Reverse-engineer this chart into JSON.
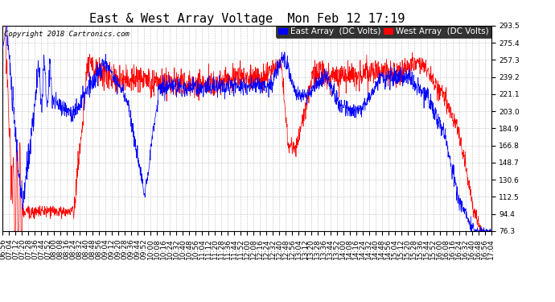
{
  "title": "East & West Array Voltage  Mon Feb 12 17:19",
  "copyright": "Copyright 2018 Cartronics.com",
  "legend_east": "East Array  (DC Volts)",
  "legend_west": "West Array  (DC Volts)",
  "color_east": "#0000ff",
  "color_west": "#ff0000",
  "bg_color": "#ffffff",
  "plot_bg_color": "#ffffff",
  "grid_color": "#999999",
  "yticks": [
    76.3,
    94.4,
    112.5,
    130.6,
    148.7,
    166.8,
    184.9,
    203.0,
    221.1,
    239.2,
    257.3,
    275.4,
    293.5
  ],
  "ymin": 76.3,
  "ymax": 293.5,
  "title_fontsize": 11,
  "tick_fontsize": 6.5,
  "legend_fontsize": 7.5,
  "copyright_fontsize": 6.5
}
